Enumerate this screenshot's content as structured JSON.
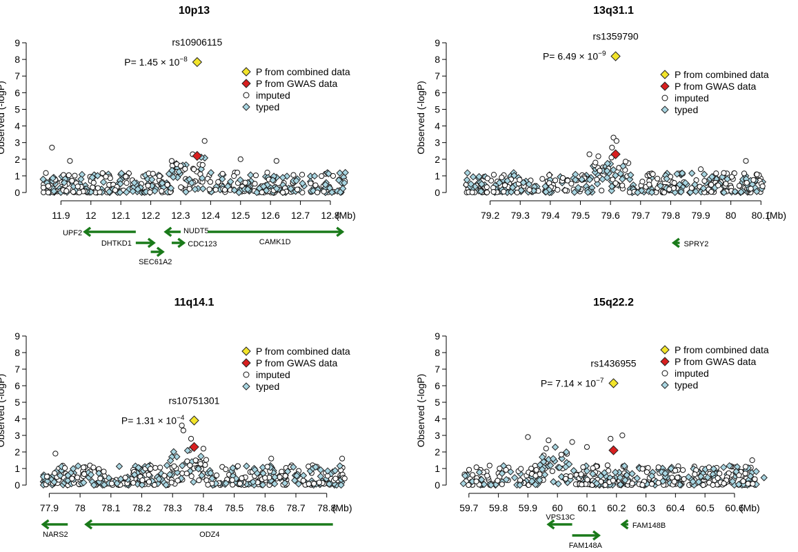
{
  "figure": {
    "ylabel": "Observed (-logP)",
    "unit": "(Mb)",
    "legend": {
      "combined": "P from combined data",
      "gwas": "P from GWAS data",
      "imputed": "imputed",
      "typed": "typed"
    },
    "colors": {
      "combined": "#f2e42a",
      "gwas": "#d81f1f",
      "typed": "#a9d6e2",
      "imputed": "#ffffff",
      "gene": "#1a7a1a"
    }
  },
  "chart_data": [
    {
      "type": "scatter",
      "title": "10p13",
      "xlim": [
        11.83,
        12.86
      ],
      "ylim": [
        0,
        9
      ],
      "x_ticks": [
        "11.9",
        "12",
        "12.1",
        "12.2",
        "12.3",
        "12.4",
        "12.5",
        "12.6",
        "12.7",
        "12.8"
      ],
      "y_ticks": [
        "0",
        "1",
        "2",
        "3",
        "4",
        "5",
        "6",
        "7",
        "8",
        "9"
      ],
      "legend_position": "top-right",
      "snp": {
        "name": "rs10906115",
        "pvalue_text": "P= 1.45 × 10",
        "pvalue_exp": "−8",
        "x": 12.355,
        "combined": 7.84,
        "gwas": 2.2
      },
      "background_points": {
        "x_range": [
          11.84,
          12.85
        ],
        "cluster_x": 12.33,
        "peak_points": [
          {
            "x": 12.27,
            "y": 1.9
          },
          {
            "x": 12.3,
            "y": 1.6
          },
          {
            "x": 12.34,
            "y": 2.3
          },
          {
            "x": 12.38,
            "y": 3.1
          },
          {
            "x": 11.87,
            "y": 2.7
          },
          {
            "x": 11.93,
            "y": 1.9
          },
          {
            "x": 12.5,
            "y": 2.0
          },
          {
            "x": 12.62,
            "y": 1.9
          }
        ]
      },
      "genes": [
        {
          "name": "UPF2",
          "start": 12.15,
          "end": 11.98,
          "row": 0,
          "label_side": "left"
        },
        {
          "name": "DHTKD1",
          "start": 12.15,
          "end": 12.21,
          "row": 1,
          "label_side": "left"
        },
        {
          "name": "SEC61A2",
          "start": 12.2,
          "end": 12.24,
          "row": 2,
          "label_side": "below"
        },
        {
          "name": "NUDT5",
          "start": 12.3,
          "end": 12.25,
          "row": 0,
          "label_side": "right"
        },
        {
          "name": "CDC123",
          "start": 12.27,
          "end": 12.31,
          "row": 1,
          "label_side": "right"
        },
        {
          "name": "CAMK1D",
          "start": 12.39,
          "end": 12.84,
          "row": 0,
          "label_side": "below"
        }
      ]
    },
    {
      "type": "scatter",
      "title": "13q31.1",
      "xlim": [
        79.1,
        80.12
      ],
      "ylim": [
        0,
        9
      ],
      "x_ticks": [
        "79.2",
        "79.3",
        "79.4",
        "79.5",
        "79.6",
        "79.7",
        "79.8",
        "79.9",
        "80",
        "80.1"
      ],
      "y_ticks": [
        "0",
        "1",
        "2",
        "3",
        "4",
        "5",
        "6",
        "7",
        "8",
        "9"
      ],
      "legend_position": "top-right",
      "snp": {
        "name": "rs1359790",
        "pvalue_text": "P= 6.49 × 10",
        "pvalue_exp": "−9",
        "x": 79.617,
        "combined": 8.19,
        "gwas": 2.3
      },
      "background_points": {
        "x_range": [
          79.12,
          80.11
        ],
        "cluster_x": 79.6,
        "peak_points": [
          {
            "x": 79.61,
            "y": 3.3
          },
          {
            "x": 79.62,
            "y": 3.1
          },
          {
            "x": 79.605,
            "y": 2.7
          },
          {
            "x": 79.53,
            "y": 2.3
          },
          {
            "x": 79.55,
            "y": 1.8
          },
          {
            "x": 80.05,
            "y": 1.9
          },
          {
            "x": 79.9,
            "y": 1.4
          }
        ]
      },
      "genes": [
        {
          "name": "SPRY2",
          "start": 79.83,
          "end": 79.81,
          "row": 1,
          "label_side": "right"
        }
      ]
    },
    {
      "type": "scatter",
      "title": "11q14.1",
      "xlim": [
        77.87,
        78.87
      ],
      "ylim": [
        0,
        9
      ],
      "x_ticks": [
        "77.9",
        "78",
        "78.1",
        "78.2",
        "78.3",
        "78.4",
        "78.5",
        "78.6",
        "78.7",
        "78.8"
      ],
      "y_ticks": [
        "0",
        "1",
        "2",
        "3",
        "4",
        "5",
        "6",
        "7",
        "8",
        "9"
      ],
      "legend_position": "top-right",
      "snp": {
        "name": "rs10751301",
        "pvalue_text": "P= 1.31 × 10",
        "pvalue_exp": "−4",
        "x": 78.37,
        "combined": 3.9,
        "gwas": 2.3
      },
      "background_points": {
        "x_range": [
          77.88,
          78.86
        ],
        "cluster_x": 78.35,
        "peak_points": [
          {
            "x": 78.33,
            "y": 3.6
          },
          {
            "x": 78.335,
            "y": 3.3
          },
          {
            "x": 78.36,
            "y": 2.8
          },
          {
            "x": 78.4,
            "y": 2.2
          },
          {
            "x": 77.92,
            "y": 1.9
          },
          {
            "x": 78.62,
            "y": 1.6
          },
          {
            "x": 78.85,
            "y": 1.6
          }
        ]
      },
      "genes": [
        {
          "name": "NARS2",
          "start": 77.96,
          "end": 77.88,
          "row": 0,
          "label_side": "below"
        },
        {
          "name": "ODZ4",
          "start": 78.82,
          "end": 78.02,
          "row": 0,
          "label_side": "below"
        }
      ]
    },
    {
      "type": "scatter",
      "title": "15q22.2",
      "xlim": [
        59.67,
        60.71
      ],
      "ylim": [
        0,
        9
      ],
      "x_ticks": [
        "59.7",
        "59.8",
        "59.9",
        "60",
        "60.1",
        "60.2",
        "60.3",
        "60.4",
        "60.5",
        "60.6"
      ],
      "y_ticks": [
        "0",
        "1",
        "2",
        "3",
        "4",
        "5",
        "6",
        "7",
        "8",
        "9"
      ],
      "legend_position": "top-right",
      "snp": {
        "name": "rs1436955",
        "pvalue_text": "P= 7.14 × 10",
        "pvalue_exp": "−7",
        "x": 60.19,
        "combined": 6.15,
        "gwas": 2.1
      },
      "background_points": {
        "x_range": [
          59.68,
          60.7
        ],
        "cluster_x": 60.0,
        "peak_points": [
          {
            "x": 59.9,
            "y": 2.9
          },
          {
            "x": 59.97,
            "y": 2.7
          },
          {
            "x": 60.05,
            "y": 2.6
          },
          {
            "x": 60.18,
            "y": 2.8
          },
          {
            "x": 60.22,
            "y": 3.0
          },
          {
            "x": 60.66,
            "y": 1.5
          },
          {
            "x": 60.1,
            "y": 2.3
          }
        ]
      },
      "genes": [
        {
          "name": "VPS13C",
          "start": 60.05,
          "end": 59.97,
          "row": 0,
          "label_side": "above"
        },
        {
          "name": "FAM148A",
          "start": 60.05,
          "end": 60.14,
          "row": 1,
          "label_side": "below"
        },
        {
          "name": "FAM148B",
          "start": 60.24,
          "end": 60.22,
          "row": 0,
          "label_side": "right"
        }
      ]
    }
  ]
}
